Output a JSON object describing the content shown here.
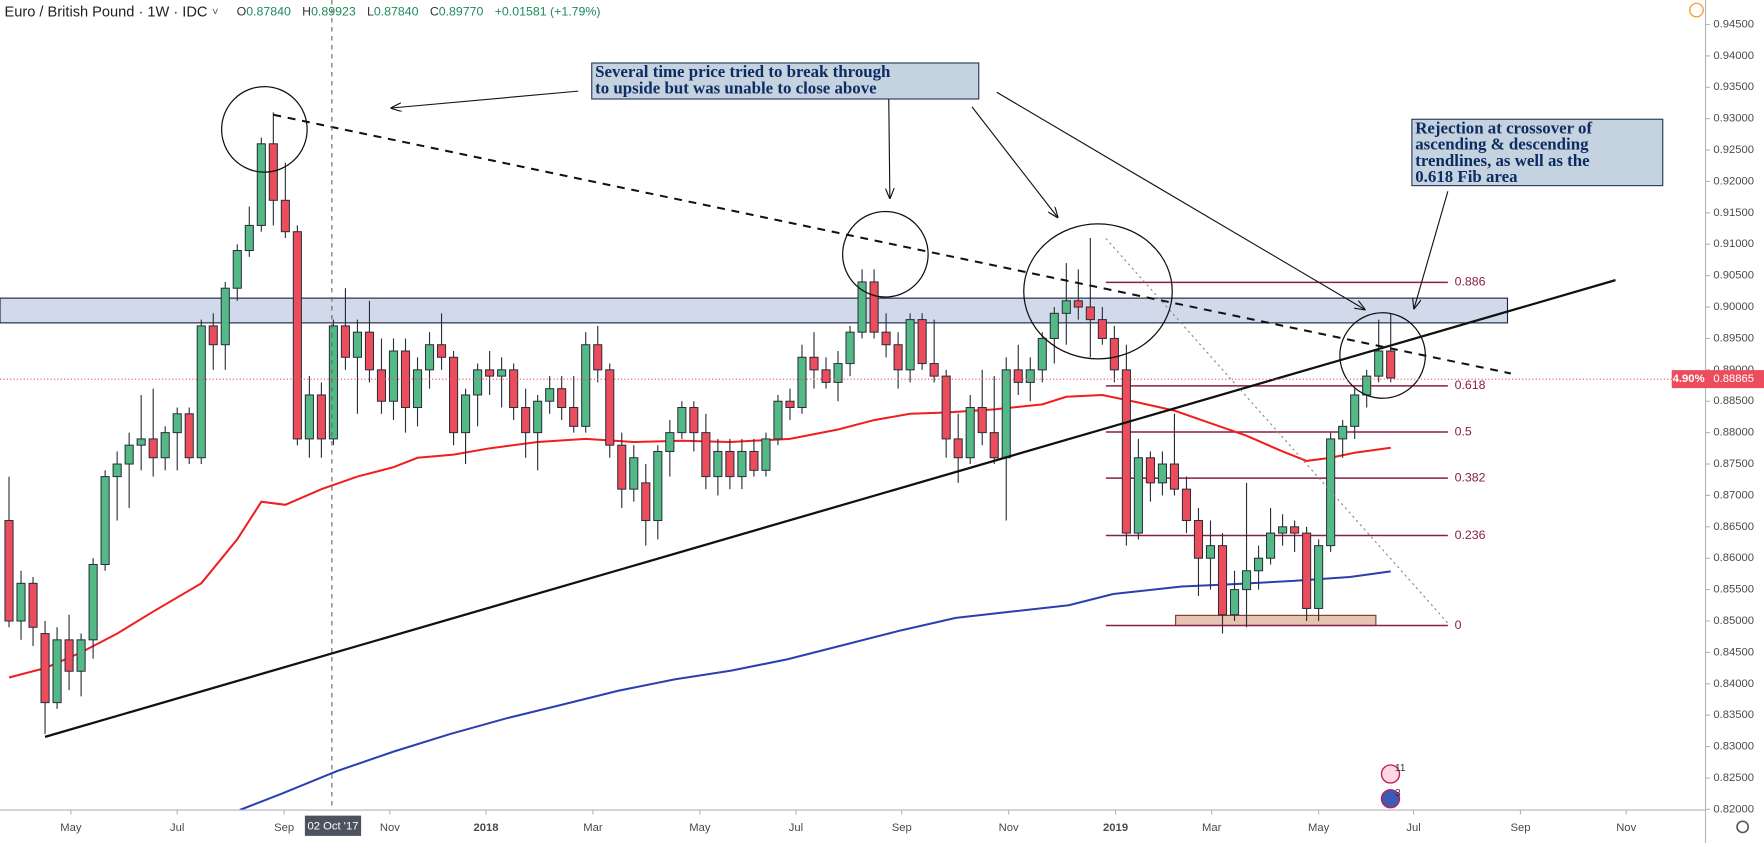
{
  "toolbar": {
    "symbol": "Euro / British Pound · 1W · IDC",
    "legend": [
      {
        "key": "O",
        "value": "0.87840"
      },
      {
        "key": "H",
        "value": "0.89923"
      },
      {
        "key": "L",
        "value": "0.87840"
      },
      {
        "key": "C",
        "value": "0.89770"
      }
    ],
    "change": "+0.01581 (+1.79%)"
  },
  "price_label": "0.88865",
  "change_label": "4.90%",
  "crosshair_label": "02 Oct '17",
  "fib_levels": [
    0.886,
    0.618,
    0.5,
    0.382,
    0.236,
    0
  ],
  "annotations": [
    {
      "lines": [
        "Several time price tried to break through",
        "to upside but was unable to close above"
      ]
    },
    {
      "lines": [
        "Rejection at crossover of",
        "ascending & descending",
        "trendlines, as well as the",
        "0.618 Fib area"
      ]
    }
  ],
  "badges": [
    "11",
    "3"
  ],
  "chart_data": {
    "type": "candlestick",
    "up_color": "#53b987",
    "down_color": "#eb4d5c",
    "grid": false,
    "xlim": [
      -0.75,
      141.2
    ],
    "ylim": [
      0.8199,
      0.9489
    ],
    "open": [
      0.866,
      0.85,
      0.856,
      0.848,
      0.837,
      0.847,
      0.842,
      0.847,
      0.859,
      0.873,
      0.875,
      0.878,
      0.879,
      0.876,
      0.88,
      0.883,
      0.876,
      0.897,
      0.894,
      0.903,
      0.909,
      0.913,
      0.926,
      0.917,
      0.912,
      0.879,
      0.886,
      0.879,
      0.897,
      0.892,
      0.896,
      0.89,
      0.885,
      0.893,
      0.884,
      0.89,
      0.894,
      0.892,
      0.88,
      0.886,
      0.89,
      0.889,
      0.89,
      0.884,
      0.88,
      0.885,
      0.887,
      0.884,
      0.881,
      0.894,
      0.89,
      0.878,
      0.871,
      0.872,
      0.866,
      0.877,
      0.88,
      0.884,
      0.88,
      0.873,
      0.877,
      0.873,
      0.877,
      0.874,
      0.879,
      0.885,
      0.884,
      0.892,
      0.89,
      0.888,
      0.891,
      0.896,
      0.904,
      0.896,
      0.894,
      0.89,
      0.898,
      0.891,
      0.889,
      0.879,
      0.876,
      0.884,
      0.88,
      0.876,
      0.89,
      0.888,
      0.89,
      0.895,
      0.899,
      0.901,
      0.9,
      0.898,
      0.895,
      0.89,
      0.864,
      0.876,
      0.872,
      0.875,
      0.871,
      0.866,
      0.86,
      0.862,
      0.851,
      0.855,
      0.858,
      0.86,
      0.864,
      0.865,
      0.864,
      0.852,
      0.862,
      0.879,
      0.881,
      0.886,
      0.889,
      0.893
    ],
    "high": [
      0.873,
      0.858,
      0.857,
      0.85,
      0.849,
      0.851,
      0.848,
      0.86,
      0.874,
      0.877,
      0.88,
      0.886,
      0.887,
      0.881,
      0.884,
      0.884,
      0.898,
      0.899,
      0.904,
      0.91,
      0.916,
      0.927,
      0.931,
      0.923,
      0.913,
      0.889,
      0.888,
      0.898,
      0.903,
      0.898,
      0.901,
      0.895,
      0.895,
      0.895,
      0.892,
      0.896,
      0.899,
      0.893,
      0.887,
      0.891,
      0.893,
      0.892,
      0.891,
      0.887,
      0.886,
      0.889,
      0.889,
      0.889,
      0.896,
      0.897,
      0.891,
      0.88,
      0.878,
      0.875,
      0.878,
      0.882,
      0.885,
      0.885,
      0.883,
      0.879,
      0.879,
      0.879,
      0.879,
      0.88,
      0.886,
      0.887,
      0.894,
      0.896,
      0.892,
      0.893,
      0.897,
      0.906,
      0.906,
      0.899,
      0.896,
      0.899,
      0.899,
      0.898,
      0.89,
      0.883,
      0.886,
      0.89,
      0.889,
      0.892,
      0.894,
      0.892,
      0.896,
      0.9,
      0.907,
      0.906,
      0.911,
      0.9,
      0.897,
      0.894,
      0.879,
      0.877,
      0.877,
      0.883,
      0.873,
      0.868,
      0.866,
      0.864,
      0.858,
      0.872,
      0.862,
      0.868,
      0.867,
      0.866,
      0.865,
      0.863,
      0.88,
      0.882,
      0.887,
      0.89,
      0.898,
      0.899
    ],
    "low": [
      0.849,
      0.847,
      0.846,
      0.832,
      0.836,
      0.839,
      0.838,
      0.844,
      0.858,
      0.866,
      0.868,
      0.874,
      0.873,
      0.874,
      0.874,
      0.875,
      0.875,
      0.89,
      0.89,
      0.901,
      0.908,
      0.912,
      0.913,
      0.911,
      0.878,
      0.876,
      0.876,
      0.878,
      0.89,
      0.883,
      0.888,
      0.883,
      0.882,
      0.88,
      0.881,
      0.887,
      0.89,
      0.878,
      0.875,
      0.881,
      0.886,
      0.884,
      0.882,
      0.876,
      0.874,
      0.883,
      0.882,
      0.88,
      0.88,
      0.888,
      0.876,
      0.868,
      0.869,
      0.862,
      0.863,
      0.873,
      0.879,
      0.877,
      0.871,
      0.87,
      0.871,
      0.871,
      0.873,
      0.873,
      0.878,
      0.882,
      0.883,
      0.887,
      0.887,
      0.885,
      0.889,
      0.895,
      0.895,
      0.892,
      0.887,
      0.888,
      0.89,
      0.888,
      0.876,
      0.872,
      0.875,
      0.878,
      0.875,
      0.866,
      0.886,
      0.885,
      0.888,
      0.891,
      0.894,
      0.898,
      0.892,
      0.894,
      0.888,
      0.862,
      0.863,
      0.869,
      0.87,
      0.87,
      0.864,
      0.854,
      0.855,
      0.848,
      0.85,
      0.849,
      0.855,
      0.859,
      0.862,
      0.861,
      0.85,
      0.85,
      0.861,
      0.876,
      0.879,
      0.884,
      0.888,
      0.888
    ],
    "close": [
      0.85,
      0.856,
      0.849,
      0.837,
      0.847,
      0.842,
      0.847,
      0.859,
      0.873,
      0.875,
      0.878,
      0.879,
      0.876,
      0.88,
      0.883,
      0.876,
      0.897,
      0.894,
      0.903,
      0.909,
      0.913,
      0.926,
      0.917,
      0.912,
      0.879,
      0.886,
      0.879,
      0.897,
      0.892,
      0.896,
      0.89,
      0.885,
      0.893,
      0.884,
      0.89,
      0.894,
      0.892,
      0.88,
      0.886,
      0.89,
      0.889,
      0.89,
      0.884,
      0.88,
      0.885,
      0.887,
      0.884,
      0.881,
      0.894,
      0.89,
      0.878,
      0.871,
      0.876,
      0.866,
      0.877,
      0.88,
      0.884,
      0.88,
      0.873,
      0.877,
      0.873,
      0.877,
      0.874,
      0.879,
      0.885,
      0.884,
      0.892,
      0.89,
      0.888,
      0.891,
      0.896,
      0.904,
      0.896,
      0.894,
      0.89,
      0.898,
      0.891,
      0.889,
      0.879,
      0.876,
      0.884,
      0.88,
      0.876,
      0.89,
      0.888,
      0.89,
      0.895,
      0.899,
      0.901,
      0.9,
      0.898,
      0.895,
      0.89,
      0.864,
      0.876,
      0.872,
      0.875,
      0.871,
      0.866,
      0.86,
      0.862,
      0.851,
      0.855,
      0.858,
      0.86,
      0.864,
      0.865,
      0.864,
      0.852,
      0.862,
      0.879,
      0.881,
      0.886,
      0.889,
      0.893,
      0.8887
    ],
    "lines": [
      {
        "color": "#f01e1e",
        "x": [
          0,
          3,
          6,
          9,
          12,
          16,
          19,
          21,
          23,
          26,
          29,
          32,
          34,
          37,
          40,
          44,
          48,
          52,
          56,
          60,
          65,
          69,
          72,
          75,
          78,
          82,
          86,
          88,
          91,
          94,
          97,
          100,
          103,
          106,
          108,
          110,
          112,
          115
        ],
        "values": [
          0.841,
          0.8425,
          0.845,
          0.848,
          0.8515,
          0.856,
          0.863,
          0.869,
          0.8685,
          0.871,
          0.873,
          0.8745,
          0.876,
          0.8765,
          0.8775,
          0.8785,
          0.879,
          0.8785,
          0.8787,
          0.8785,
          0.879,
          0.8805,
          0.882,
          0.883,
          0.8832,
          0.8837,
          0.8845,
          0.8857,
          0.886,
          0.8848,
          0.8835,
          0.8815,
          0.8795,
          0.877,
          0.8755,
          0.876,
          0.8768,
          0.8776
        ]
      },
      {
        "color": "#2a3fb0",
        "x": [
          19.2,
          22.7,
          27.3,
          32.0,
          36.7,
          41.4,
          46.1,
          50.7,
          55.4,
          60.1,
          64.8,
          69.5,
          74.2,
          78.8,
          83.5,
          88.2,
          91.9,
          97.6,
          102.2,
          106.9,
          111.6,
          115
        ],
        "values": [
          0.8199,
          0.8225,
          0.8261,
          0.8292,
          0.832,
          0.8345,
          0.8367,
          0.8389,
          0.8407,
          0.8421,
          0.8439,
          0.8462,
          0.8485,
          0.8505,
          0.8515,
          0.8525,
          0.8543,
          0.8555,
          0.8559,
          0.8564,
          0.857,
          0.8579
        ]
      }
    ],
    "xticks": [
      {
        "value": 5.15,
        "label": "May"
      },
      {
        "value": 14.0,
        "label": "Jul"
      },
      {
        "value": 22.9,
        "label": "Sep"
      },
      {
        "value": 31.7,
        "label": "Nov"
      },
      {
        "value": 39.7,
        "label": "2018"
      },
      {
        "value": 48.6,
        "label": "Mar"
      },
      {
        "value": 57.5,
        "label": "May"
      },
      {
        "value": 65.5,
        "label": "Jul"
      },
      {
        "value": 74.3,
        "label": "Sep"
      },
      {
        "value": 83.2,
        "label": "Nov"
      },
      {
        "value": 92.1,
        "label": "2019"
      },
      {
        "value": 100.1,
        "label": "Mar"
      },
      {
        "value": 109.0,
        "label": "May"
      },
      {
        "value": 116.9,
        "label": "Jul"
      },
      {
        "value": 125.8,
        "label": "Sep"
      },
      {
        "value": 134.6,
        "label": "Nov"
      }
    ],
    "yticks": [
      {
        "value": 0.82,
        "label": "0.82000"
      },
      {
        "value": 0.825,
        "label": "0.82500"
      },
      {
        "value": 0.83,
        "label": "0.83000"
      },
      {
        "value": 0.835,
        "label": "0.83500"
      },
      {
        "value": 0.84,
        "label": "0.84000"
      },
      {
        "value": 0.845,
        "label": "0.84500"
      },
      {
        "value": 0.85,
        "label": "0.85000"
      },
      {
        "value": 0.855,
        "label": "0.85500"
      },
      {
        "value": 0.86,
        "label": "0.86000"
      },
      {
        "value": 0.865,
        "label": "0.86500"
      },
      {
        "value": 0.87,
        "label": "0.87000"
      },
      {
        "value": 0.875,
        "label": "0.87500"
      },
      {
        "value": 0.88,
        "label": "0.88000"
      },
      {
        "value": 0.885,
        "label": "0.88500"
      },
      {
        "value": 0.89,
        "label": "0.89000"
      },
      {
        "value": 0.895,
        "label": "0.89500"
      },
      {
        "value": 0.9,
        "label": "0.90000"
      },
      {
        "value": 0.905,
        "label": "0.90500"
      },
      {
        "value": 0.91,
        "label": "0.91000"
      },
      {
        "value": 0.915,
        "label": "0.91500"
      },
      {
        "value": 0.92,
        "label": "0.92000"
      },
      {
        "value": 0.925,
        "label": "0.92500"
      },
      {
        "value": 0.93,
        "label": "0.93000"
      },
      {
        "value": 0.935,
        "label": "0.93500"
      },
      {
        "value": 0.94,
        "label": "0.94000"
      },
      {
        "value": 0.945,
        "label": "0.94500"
      }
    ]
  }
}
